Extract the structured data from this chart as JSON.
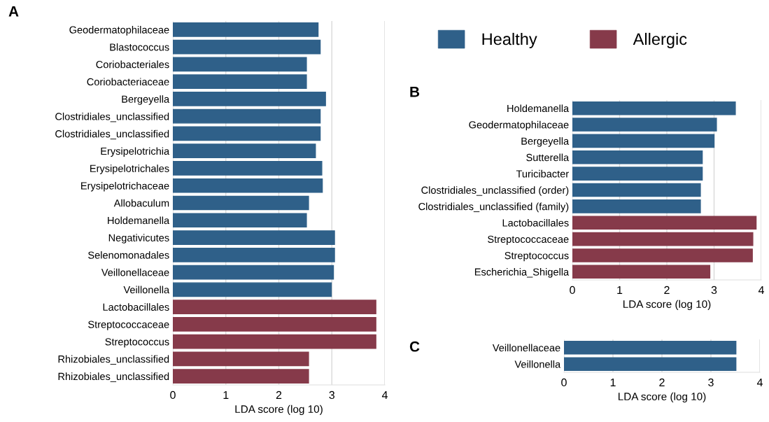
{
  "chart_data": [
    {
      "type": "bar",
      "orientation": "horizontal",
      "title": "A",
      "xlabel": "LDA score (log 10)",
      "categories": [
        "Geodermatophilaceae",
        "Blastococcus",
        "Coriobacteriales",
        "Coriobacteriaceae",
        "Bergeyella",
        "Clostridiales_unclassified",
        "Clostridiales_unclassified",
        "Erysipelotrichia",
        "Erysipelotrichales",
        "Erysipelotrichaceae",
        "Allobaculum",
        "Holdemanella",
        "Negativicutes",
        "Selenomonadales",
        "Veillonellaceae",
        "Veillonella",
        "Lactobacillales",
        "Streptococcaceae",
        "Streptococcus",
        "Rhizobiales_unclassified",
        "Rhizobiales_unclassified"
      ],
      "series": [
        {
          "name": "Healthy",
          "color": "#2f6089",
          "values": [
            2.74,
            2.78,
            2.52,
            2.52,
            2.88,
            2.78,
            2.78,
            2.69,
            2.81,
            2.82,
            2.56,
            2.52,
            3.05,
            3.05,
            3.03,
            2.99,
            null,
            null,
            null,
            null,
            null
          ]
        },
        {
          "name": "Allergic",
          "color": "#863a4a",
          "values": [
            null,
            null,
            null,
            null,
            null,
            null,
            null,
            null,
            null,
            null,
            null,
            null,
            null,
            null,
            null,
            null,
            3.83,
            3.83,
            3.83,
            2.56,
            2.56
          ]
        }
      ],
      "xlim": [
        0,
        4
      ],
      "xticks": [
        0,
        1,
        2,
        3,
        4
      ],
      "grid": "x",
      "legend": "top right"
    },
    {
      "type": "bar",
      "orientation": "horizontal",
      "title": "B",
      "xlabel": "LDA score (log 10)",
      "categories": [
        "Holdemanella",
        "Geodermatophilaceae",
        "Bergeyella",
        "Sutterella",
        "Turicibacter",
        "Clostridiales_unclassified (order)",
        "Clostridiales_unclassified (family)",
        "Lactobacillales",
        "Streptococcaceae",
        "Streptococcus",
        "Escherichia_Shigella"
      ],
      "values": [
        3.45,
        3.05,
        3.0,
        2.75,
        2.75,
        2.71,
        2.71,
        3.89,
        3.82,
        3.81,
        2.91
      ],
      "colors": [
        "#2f6089",
        "#2f6089",
        "#2f6089",
        "#2f6089",
        "#2f6089",
        "#2f6089",
        "#2f6089",
        "#863a4a",
        "#863a4a",
        "#863a4a",
        "#863a4a"
      ],
      "xlim": [
        0,
        4
      ],
      "xticks": [
        0,
        1,
        2,
        3,
        4
      ],
      "grid": "x"
    },
    {
      "type": "bar",
      "orientation": "horizontal",
      "title": "C",
      "xlabel": "LDA score (log 10)",
      "categories": [
        "Veillonellaceae",
        "Veillonella"
      ],
      "values": [
        3.51,
        3.51
      ],
      "colors": [
        "#2f6089",
        "#2f6089"
      ],
      "xlim": [
        0,
        4
      ],
      "xticks": [
        0,
        1,
        2,
        3,
        4
      ],
      "grid": "x"
    }
  ]
}
